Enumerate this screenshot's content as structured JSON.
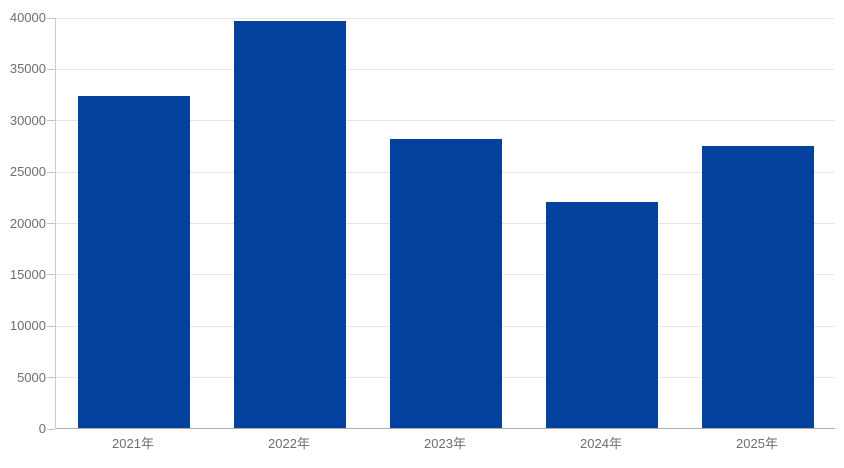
{
  "chart_data": {
    "type": "bar",
    "title": "",
    "xlabel": "",
    "ylabel": "",
    "categories": [
      "2021年",
      "2022年",
      "2023年",
      "2024年",
      "2025年"
    ],
    "values": [
      32300,
      39600,
      28100,
      22000,
      27400
    ],
    "ylim": [
      0,
      40000
    ],
    "ytick_interval": 5000,
    "y_ticks": [
      0,
      5000,
      10000,
      15000,
      20000,
      25000,
      30000,
      35000,
      40000
    ],
    "grid": true,
    "legend": "none",
    "colors": {
      "bar": "#04419D",
      "gridline": "#e6e6e6",
      "axis_line": "#cccccc",
      "baseline": "#b0b0b0",
      "tick": "#c6c6c6",
      "label_text": "#6e6e6e",
      "background": "#ffffff"
    }
  }
}
